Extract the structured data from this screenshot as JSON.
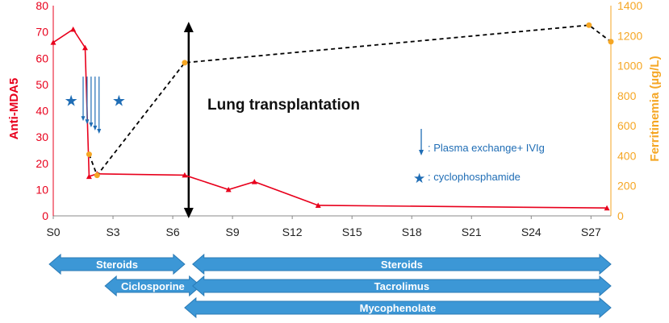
{
  "chart_data": {
    "type": "line",
    "x_tick_labels": [
      "S0",
      "S3",
      "S6",
      "S9",
      "S12",
      "S15",
      "S18",
      "S21",
      "S24",
      "S27"
    ],
    "x_ticks": [
      0,
      3,
      6,
      9,
      12,
      15,
      18,
      21,
      24,
      27
    ],
    "xlim": [
      0,
      28
    ],
    "left_axis": {
      "label": "Anti-MDA5",
      "ylim": [
        0,
        80
      ],
      "ticks": [
        0,
        10,
        20,
        30,
        40,
        50,
        60,
        70,
        80
      ],
      "color": "#e8001c"
    },
    "right_axis": {
      "label": "Ferritinemia (µg/L)",
      "ylim": [
        0,
        1400
      ],
      "ticks": [
        0,
        200,
        400,
        600,
        800,
        1000,
        1200,
        1400
      ],
      "color": "#f5a623"
    },
    "series": [
      {
        "axis": "left",
        "color": "#e8001c",
        "style": "solid",
        "marker": "triangle",
        "x": [
          0,
          1,
          1.6,
          1.8,
          2.2,
          6.6,
          8.8,
          10.1,
          13.3,
          27.8
        ],
        "y": [
          66,
          71,
          64,
          15,
          16,
          15.5,
          10,
          13,
          4,
          3
        ]
      },
      {
        "axis": "right",
        "color": "#000000",
        "marker_color": "#f5a623",
        "style": "dashed",
        "marker": "circle",
        "x": [
          1.8,
          2.2,
          6.6,
          26.9,
          28
        ],
        "y": [
          410,
          270,
          1020,
          1270,
          1160
        ]
      }
    ],
    "plasma_exchange_arrows": {
      "x": [
        1.5,
        1.7,
        1.9,
        2.1,
        2.3
      ],
      "from": 53,
      "to": 37
    },
    "cyclophosphamide_stars": {
      "x": [
        0.9,
        3.3
      ],
      "y": 44
    },
    "transplant_line": {
      "x": 6.8,
      "label": "Lung transplantation"
    },
    "legend": [
      {
        "symbol": "arrow",
        "text": ": Plasma exchange+ IVIg"
      },
      {
        "symbol": "star",
        "text": ": cyclophosphamide"
      }
    ],
    "treatment_bars": [
      {
        "label": "Steroids",
        "start": -0.2,
        "end": 6.6,
        "row": 0
      },
      {
        "label": "Steroids",
        "start": 7.0,
        "end": 28.0,
        "row": 0
      },
      {
        "label": "Ciclosporine",
        "start": 2.6,
        "end": 7.4,
        "row": 1
      },
      {
        "label": "Tacrolimus",
        "start": 7.0,
        "end": 28.0,
        "row": 1
      },
      {
        "label": "Mycophenolate",
        "start": 6.6,
        "end": 28.0,
        "row": 2
      }
    ],
    "grid": false
  }
}
